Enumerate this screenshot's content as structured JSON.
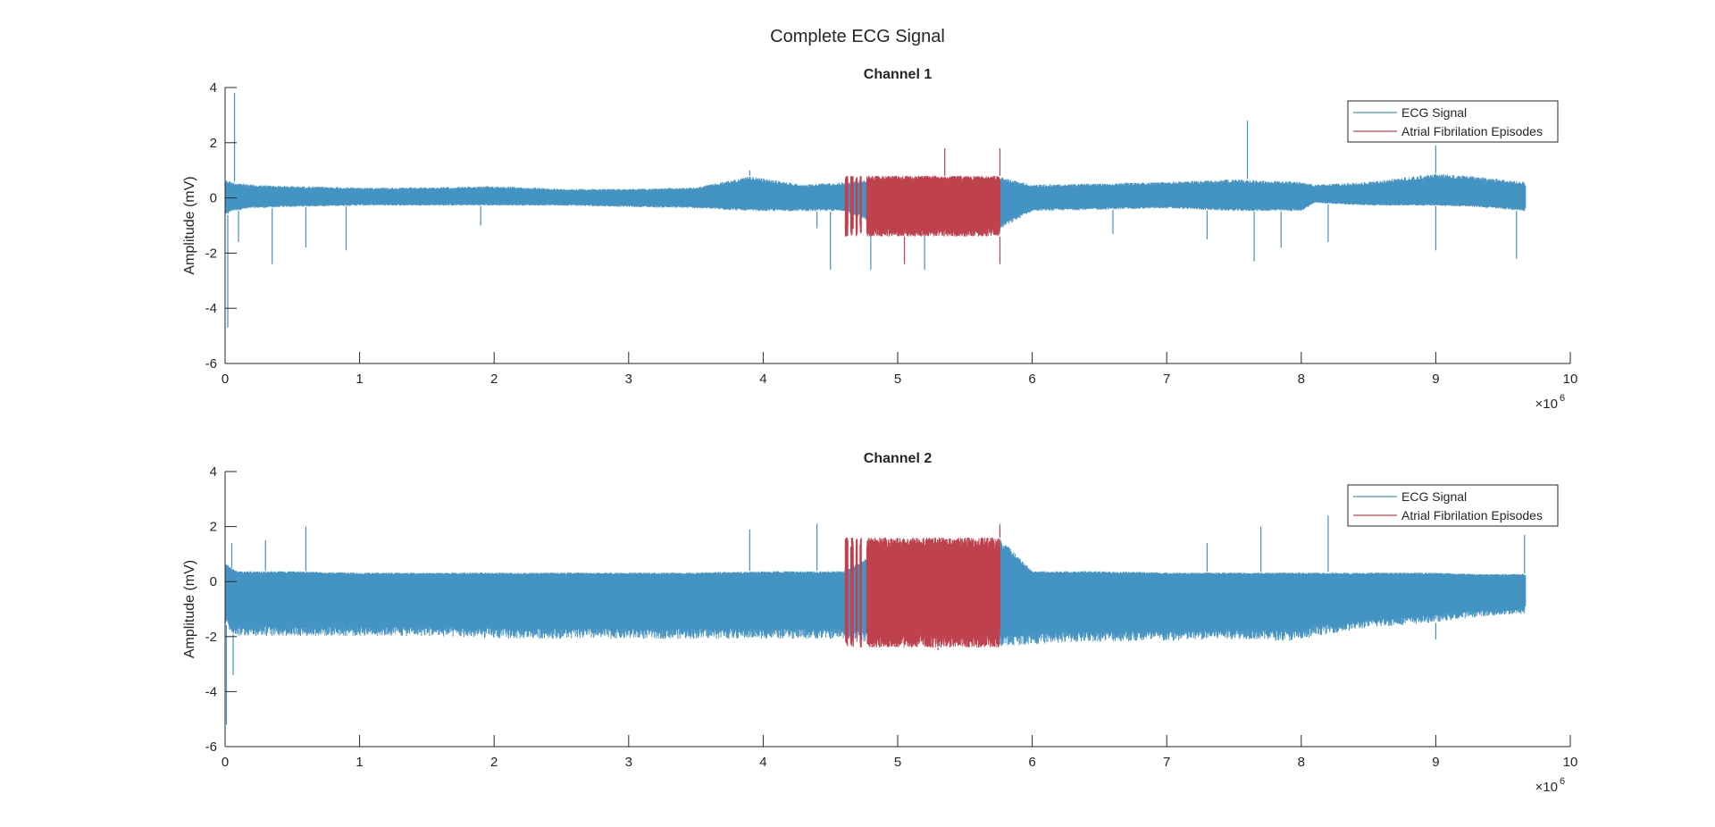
{
  "figure": {
    "title": "Complete ECG Signal"
  },
  "colors": {
    "ecg": "#4393c3",
    "af": "#c0414e",
    "axis": "#262626",
    "background": "#ffffff"
  },
  "chart_data": [
    {
      "type": "line",
      "title": "Channel 1",
      "xlabel": "",
      "ylabel": "Amplitude (mV)",
      "x_exponent_label": "×10",
      "x_exponent": "6",
      "xlim": [
        0,
        10
      ],
      "ylim": [
        -6,
        4
      ],
      "xticks": [
        "0",
        "1",
        "2",
        "3",
        "4",
        "5",
        "6",
        "7",
        "8",
        "9",
        "10"
      ],
      "yticks": [
        "-6",
        "-4",
        "-2",
        "0",
        "2",
        "4"
      ],
      "grid": false,
      "legend": {
        "placement": "top-right",
        "entries": [
          "ECG Signal",
          "Atrial Fibrilation Episodes"
        ]
      },
      "x_end": 9.66,
      "envelope": {
        "x": [
          0,
          0.05,
          0.2,
          0.5,
          1.0,
          1.5,
          2.0,
          2.5,
          3.0,
          3.5,
          3.9,
          4.3,
          4.6,
          5.0,
          5.5,
          5.75,
          6.0,
          6.5,
          7.0,
          7.5,
          8.0,
          8.1,
          8.5,
          9.0,
          9.3,
          9.66
        ],
        "upper": [
          0.7,
          0.6,
          0.5,
          0.45,
          0.4,
          0.4,
          0.45,
          0.35,
          0.35,
          0.4,
          0.8,
          0.5,
          0.6,
          0.8,
          0.8,
          0.8,
          0.5,
          0.55,
          0.6,
          0.7,
          0.6,
          0.5,
          0.6,
          0.9,
          0.8,
          0.6
        ],
        "lower": [
          -0.7,
          -0.5,
          -0.4,
          -0.35,
          -0.3,
          -0.3,
          -0.3,
          -0.3,
          -0.35,
          -0.4,
          -0.5,
          -0.5,
          -0.5,
          -1.3,
          -1.4,
          -1.2,
          -0.5,
          -0.45,
          -0.4,
          -0.5,
          -0.5,
          -0.2,
          -0.3,
          -0.3,
          -0.35,
          -0.5
        ]
      },
      "spikes": [
        {
          "x": 0.02,
          "y": -4.7
        },
        {
          "x": 0.07,
          "y": 3.8
        },
        {
          "x": 0.1,
          "y": -1.6
        },
        {
          "x": 0.35,
          "y": -2.4
        },
        {
          "x": 0.6,
          "y": -1.8
        },
        {
          "x": 0.9,
          "y": -1.9
        },
        {
          "x": 1.9,
          "y": -1.0
        },
        {
          "x": 3.9,
          "y": 1.0
        },
        {
          "x": 4.4,
          "y": -1.1
        },
        {
          "x": 4.5,
          "y": -2.6
        },
        {
          "x": 4.8,
          "y": -2.6
        },
        {
          "x": 5.2,
          "y": -2.6
        },
        {
          "x": 6.6,
          "y": -1.3
        },
        {
          "x": 7.3,
          "y": -1.5
        },
        {
          "x": 7.6,
          "y": 2.8
        },
        {
          "x": 7.65,
          "y": -2.3
        },
        {
          "x": 7.85,
          "y": -1.8
        },
        {
          "x": 8.2,
          "y": -1.6
        },
        {
          "x": 9.0,
          "y": 1.9
        },
        {
          "x": 9.0,
          "y": -1.9
        },
        {
          "x": 9.6,
          "y": -2.2
        }
      ],
      "af_episodes": [
        [
          4.61,
          4.63
        ],
        [
          4.65,
          4.67
        ],
        [
          4.69,
          4.7
        ],
        [
          4.72,
          4.73
        ],
        [
          4.77,
          5.76
        ]
      ],
      "af_envelope": {
        "upper": 0.8,
        "lower": -1.4
      },
      "af_spikes": [
        {
          "x": 5.35,
          "y": 1.8
        },
        {
          "x": 5.76,
          "y": 1.8
        },
        {
          "x": 5.76,
          "y": -2.4
        },
        {
          "x": 5.05,
          "y": -2.4
        }
      ]
    },
    {
      "type": "line",
      "title": "Channel 2",
      "xlabel": "",
      "ylabel": "Amplitude (mV)",
      "x_exponent_label": "×10",
      "x_exponent": "6",
      "xlim": [
        0,
        10
      ],
      "ylim": [
        -6,
        4
      ],
      "xticks": [
        "0",
        "1",
        "2",
        "3",
        "4",
        "5",
        "6",
        "7",
        "8",
        "9",
        "10"
      ],
      "yticks": [
        "-6",
        "-4",
        "-2",
        "0",
        "2",
        "4"
      ],
      "grid": false,
      "legend": {
        "placement": "top-right",
        "entries": [
          "ECG Signal",
          "Atrial Fibrilation Episodes"
        ]
      },
      "x_end": 9.66,
      "envelope": {
        "x": [
          0,
          0.05,
          0.1,
          0.5,
          1.0,
          1.5,
          2.0,
          2.5,
          3.0,
          3.5,
          4.0,
          4.6,
          5.0,
          5.5,
          5.76,
          6.0,
          6.5,
          7.0,
          7.5,
          8.0,
          8.1,
          8.5,
          9.0,
          9.3,
          9.66
        ],
        "upper": [
          0.7,
          0.5,
          0.4,
          0.4,
          0.35,
          0.35,
          0.35,
          0.35,
          0.35,
          0.35,
          0.4,
          0.4,
          1.6,
          1.6,
          1.6,
          0.4,
          0.4,
          0.35,
          0.35,
          0.35,
          0.35,
          0.35,
          0.35,
          0.3,
          0.3
        ],
        "lower": [
          -1.5,
          -1.9,
          -2.0,
          -2.0,
          -2.0,
          -2.0,
          -2.1,
          -2.1,
          -2.1,
          -2.1,
          -2.1,
          -2.1,
          -2.4,
          -2.4,
          -2.4,
          -2.3,
          -2.2,
          -2.2,
          -2.1,
          -2.2,
          -2.0,
          -1.7,
          -1.5,
          -1.3,
          -1.2
        ]
      },
      "spikes": [
        {
          "x": 0.01,
          "y": -5.2
        },
        {
          "x": 0.06,
          "y": -3.4
        },
        {
          "x": 0.05,
          "y": 1.4
        },
        {
          "x": 0.3,
          "y": 1.5
        },
        {
          "x": 0.6,
          "y": 2.0
        },
        {
          "x": 3.9,
          "y": 1.9
        },
        {
          "x": 4.4,
          "y": 2.1
        },
        {
          "x": 5.76,
          "y": 2.1
        },
        {
          "x": 7.3,
          "y": 1.4
        },
        {
          "x": 7.7,
          "y": 2.0
        },
        {
          "x": 8.2,
          "y": 2.4
        },
        {
          "x": 9.0,
          "y": -2.1
        },
        {
          "x": 9.66,
          "y": 1.7
        }
      ],
      "af_episodes": [
        [
          4.61,
          4.63
        ],
        [
          4.65,
          4.67
        ],
        [
          4.69,
          4.7
        ],
        [
          4.72,
          4.73
        ],
        [
          4.77,
          5.76
        ]
      ],
      "af_envelope": {
        "upper": 1.6,
        "lower": -2.4
      },
      "af_spikes": [
        {
          "x": 5.76,
          "y": 2.0
        },
        {
          "x": 4.62,
          "y": 1.5
        },
        {
          "x": 5.3,
          "y": -2.5
        }
      ]
    }
  ]
}
